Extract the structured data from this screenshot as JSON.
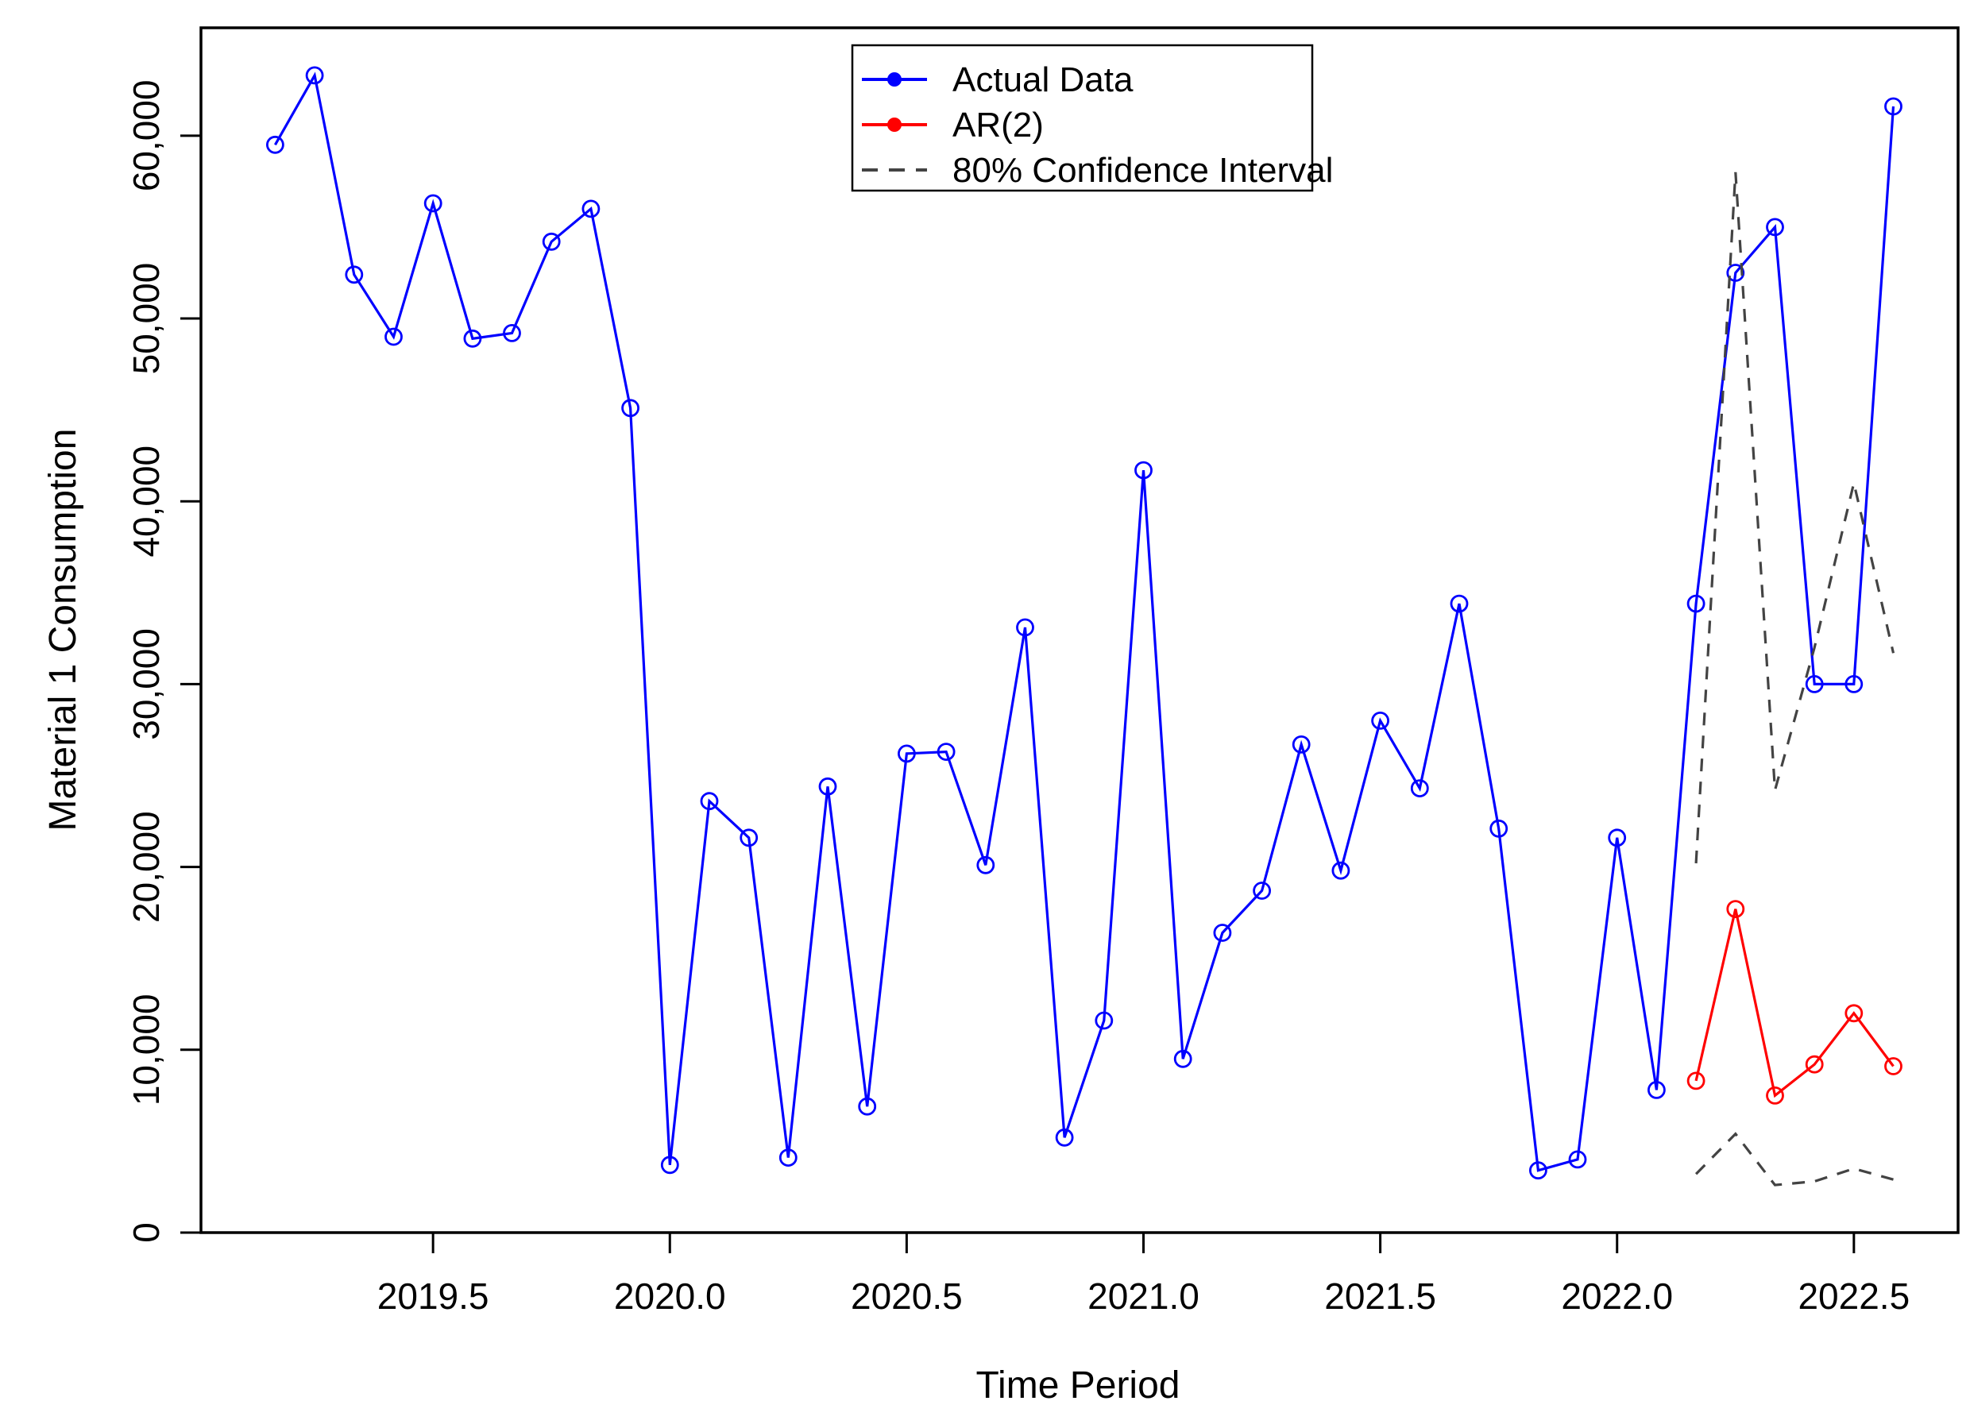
{
  "chart_data": {
    "type": "line",
    "title": "",
    "xlabel": "Time Period",
    "ylabel": "Material 1 Consumption",
    "xlim": [
      2019.01,
      2022.72
    ],
    "ylim": [
      0,
      65900
    ],
    "grid": false,
    "legend_position": "top-center",
    "x_ticks": {
      "values": [
        2019.5,
        2020.0,
        2020.5,
        2021.0,
        2021.5,
        2022.0,
        2022.5
      ],
      "labels": [
        "2019.5",
        "2020.0",
        "2020.5",
        "2021.0",
        "2021.5",
        "2022.0",
        "2022.5"
      ]
    },
    "y_ticks": {
      "values": [
        0,
        10000,
        20000,
        30000,
        40000,
        50000,
        60000
      ],
      "labels": [
        "0",
        "10,000",
        "20,000",
        "30,000",
        "40,000",
        "50,000",
        "60,000"
      ]
    },
    "series": [
      {
        "name": "Actual Data",
        "color": "#0000ff",
        "style": "solid",
        "marker": "open-circle",
        "x_start": 2019.1667,
        "x_step": 0.083333,
        "values": [
          59500,
          63300,
          52400,
          49000,
          56300,
          48900,
          49200,
          54200,
          56000,
          45100,
          3700,
          23600,
          21600,
          4100,
          24400,
          6900,
          26200,
          26300,
          20100,
          33100,
          5200,
          11600,
          41700,
          9500,
          16400,
          18700,
          26700,
          19800,
          28000,
          24300,
          34400,
          22100,
          3400,
          4000,
          21600,
          7800,
          34400,
          52500,
          55000,
          30000,
          30000,
          61600
        ]
      },
      {
        "name": "AR(2)",
        "color": "#ff0000",
        "style": "solid",
        "marker": "open-circle",
        "x_start": 2022.1667,
        "x_step": 0.083333,
        "values": [
          8300,
          17700,
          7500,
          9200,
          12000,
          9100
        ]
      },
      {
        "name": "80% Confidence Interval",
        "color": "#434343",
        "style": "dashed",
        "marker": "none",
        "x_start": 2022.1667,
        "x_step": 0.083333,
        "values": [
          20200,
          58000,
          24200,
          32000,
          41000,
          31700
        ]
      },
      {
        "name": "80% CI lower bound",
        "color": "#434343",
        "style": "dashed",
        "marker": "none",
        "x_start": 2022.1667,
        "x_step": 0.083333,
        "values": [
          3200,
          5400,
          2600,
          2800,
          3500,
          2900
        ]
      }
    ],
    "legend": {
      "entries": [
        {
          "label": "Actual Data",
          "color": "#0000ff",
          "style": "solid-dot"
        },
        {
          "label": "AR(2)",
          "color": "#ff0000",
          "style": "solid-dot"
        },
        {
          "label": "80% Confidence Interval",
          "color": "#434343",
          "style": "dashed"
        }
      ]
    }
  }
}
